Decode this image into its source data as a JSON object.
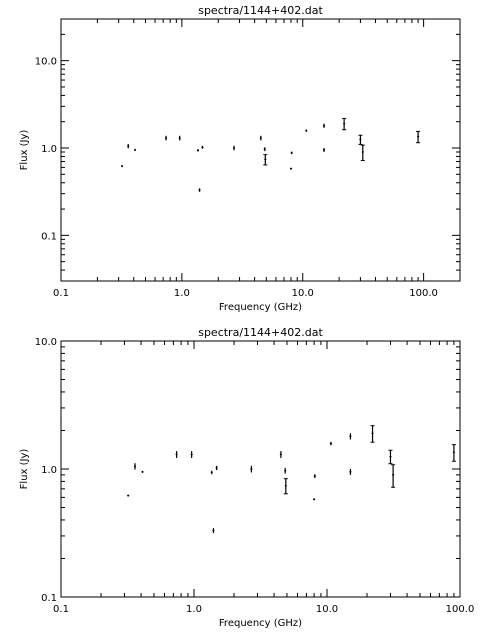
{
  "chart_data": [
    {
      "type": "scatter",
      "title": "spectra/1144+402.dat",
      "xlabel": "Frequency (GHz)",
      "ylabel": "Flux (Jy)",
      "xscale": "log",
      "yscale": "log",
      "xlim": [
        0.1,
        200
      ],
      "ylim": [
        0.03,
        30
      ],
      "xticks": [
        {
          "value": 0.1,
          "label": "0.1"
        },
        {
          "value": 1,
          "label": "1.0"
        },
        {
          "value": 10,
          "label": "10.0"
        },
        {
          "value": 100,
          "label": "100.0"
        }
      ],
      "yticks": [
        {
          "value": 0.1,
          "label": "0.1"
        },
        {
          "value": 1,
          "label": "1.0"
        },
        {
          "value": 10,
          "label": "10.0"
        }
      ],
      "points": [
        {
          "x": 0.32,
          "y": 0.62,
          "err": 0.0
        },
        {
          "x": 0.36,
          "y": 1.05,
          "err": 0.06
        },
        {
          "x": 0.41,
          "y": 0.95,
          "err": 0.0
        },
        {
          "x": 0.74,
          "y": 1.3,
          "err": 0.08
        },
        {
          "x": 0.96,
          "y": 1.3,
          "err": 0.08
        },
        {
          "x": 1.36,
          "y": 0.94,
          "err": 0.03
        },
        {
          "x": 1.4,
          "y": 0.33,
          "err": 0.015
        },
        {
          "x": 1.48,
          "y": 1.02,
          "err": 0.04
        },
        {
          "x": 2.7,
          "y": 1.0,
          "err": 0.06
        },
        {
          "x": 4.5,
          "y": 1.3,
          "err": 0.08
        },
        {
          "x": 4.85,
          "y": 0.97,
          "err": 0.05
        },
        {
          "x": 4.9,
          "y": 0.74,
          "err": 0.1
        },
        {
          "x": 8.0,
          "y": 0.58,
          "err": 0.0
        },
        {
          "x": 8.1,
          "y": 0.88,
          "err": 0.03
        },
        {
          "x": 10.7,
          "y": 1.58,
          "err": 0.05
        },
        {
          "x": 15.0,
          "y": 1.8,
          "err": 0.1
        },
        {
          "x": 15.0,
          "y": 0.95,
          "err": 0.05
        },
        {
          "x": 22.0,
          "y": 1.9,
          "err": 0.28
        },
        {
          "x": 30.0,
          "y": 1.25,
          "err": 0.15
        },
        {
          "x": 31.4,
          "y": 0.9,
          "err": 0.18
        },
        {
          "x": 90.0,
          "y": 1.35,
          "err": 0.2
        }
      ]
    },
    {
      "type": "scatter",
      "title": "spectra/1144+402.dat",
      "xlabel": "Frequency (GHz)",
      "ylabel": "Flux (Jy)",
      "xscale": "log",
      "yscale": "log",
      "xlim": [
        0.1,
        100
      ],
      "ylim": [
        0.1,
        10
      ],
      "xticks": [
        {
          "value": 0.1,
          "label": "0.1"
        },
        {
          "value": 1,
          "label": "1.0"
        },
        {
          "value": 10,
          "label": "10.0"
        },
        {
          "value": 100,
          "label": "100.0"
        }
      ],
      "yticks": [
        {
          "value": 0.1,
          "label": "0.1"
        },
        {
          "value": 1,
          "label": "1.0"
        },
        {
          "value": 10,
          "label": "10.0"
        }
      ],
      "points": [
        {
          "x": 0.32,
          "y": 0.62,
          "err": 0.0
        },
        {
          "x": 0.36,
          "y": 1.05,
          "err": 0.06
        },
        {
          "x": 0.41,
          "y": 0.95,
          "err": 0.0
        },
        {
          "x": 0.74,
          "y": 1.3,
          "err": 0.08
        },
        {
          "x": 0.96,
          "y": 1.3,
          "err": 0.08
        },
        {
          "x": 1.36,
          "y": 0.94,
          "err": 0.03
        },
        {
          "x": 1.4,
          "y": 0.33,
          "err": 0.015
        },
        {
          "x": 1.48,
          "y": 1.02,
          "err": 0.04
        },
        {
          "x": 2.7,
          "y": 1.0,
          "err": 0.06
        },
        {
          "x": 4.5,
          "y": 1.3,
          "err": 0.08
        },
        {
          "x": 4.85,
          "y": 0.97,
          "err": 0.05
        },
        {
          "x": 4.9,
          "y": 0.74,
          "err": 0.1
        },
        {
          "x": 8.0,
          "y": 0.58,
          "err": 0.0
        },
        {
          "x": 8.1,
          "y": 0.88,
          "err": 0.03
        },
        {
          "x": 10.7,
          "y": 1.58,
          "err": 0.05
        },
        {
          "x": 15.0,
          "y": 1.8,
          "err": 0.1
        },
        {
          "x": 15.0,
          "y": 0.95,
          "err": 0.05
        },
        {
          "x": 22.0,
          "y": 1.9,
          "err": 0.28
        },
        {
          "x": 30.0,
          "y": 1.25,
          "err": 0.15
        },
        {
          "x": 31.4,
          "y": 0.9,
          "err": 0.18
        },
        {
          "x": 90.0,
          "y": 1.35,
          "err": 0.2
        }
      ]
    }
  ]
}
